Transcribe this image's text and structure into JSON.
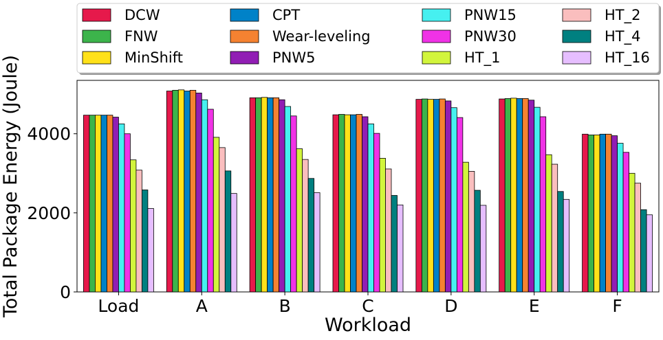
{
  "chart_data": {
    "type": "bar",
    "xlabel": "Workload",
    "ylabel": "Total Package Energy (Joule)",
    "ylim": [
      0,
      5350
    ],
    "yticks": [
      0,
      2000,
      4000
    ],
    "grid": false,
    "legend_position": "top",
    "legend_columns": 4,
    "categories": [
      "Load",
      "A",
      "B",
      "C",
      "D",
      "E",
      "F"
    ],
    "series": [
      {
        "name": "DCW",
        "color": "#e6194b",
        "values": [
          4470,
          5080,
          4910,
          4480,
          4870,
          4880,
          3990
        ]
      },
      {
        "name": "FNW",
        "color": "#3cb44b",
        "values": [
          4470,
          5100,
          4910,
          4490,
          4880,
          4890,
          3970
        ]
      },
      {
        "name": "MinShift",
        "color": "#ffe119",
        "values": [
          4470,
          5110,
          4920,
          4480,
          4870,
          4900,
          3970
        ]
      },
      {
        "name": "CPT",
        "color": "#0082c8",
        "values": [
          4470,
          5080,
          4910,
          4480,
          4870,
          4890,
          3990
        ]
      },
      {
        "name": "Wear-leveling",
        "color": "#f58231",
        "values": [
          4470,
          5100,
          4910,
          4490,
          4880,
          4890,
          3990
        ]
      },
      {
        "name": "PNW5",
        "color": "#911eb4",
        "values": [
          4420,
          5030,
          4860,
          4430,
          4830,
          4850,
          3950
        ]
      },
      {
        "name": "PNW15",
        "color": "#46f0f0",
        "values": [
          4250,
          4860,
          4690,
          4250,
          4660,
          4670,
          3760
        ]
      },
      {
        "name": "PNW30",
        "color": "#f032e6",
        "values": [
          4000,
          4620,
          4450,
          4010,
          4410,
          4430,
          3530
        ]
      },
      {
        "name": "HT_1",
        "color": "#d2f53c",
        "values": [
          3340,
          3910,
          3620,
          3380,
          3280,
          3470,
          3000
        ]
      },
      {
        "name": "HT_2",
        "color": "#fabebe",
        "values": [
          3080,
          3650,
          3350,
          3110,
          3050,
          3230,
          2750
        ]
      },
      {
        "name": "HT_4",
        "color": "#008080",
        "values": [
          2580,
          3060,
          2870,
          2440,
          2570,
          2540,
          2080
        ]
      },
      {
        "name": "HT_16",
        "color": "#e6beff",
        "values": [
          2110,
          2490,
          2510,
          2200,
          2190,
          2340,
          1950
        ]
      }
    ]
  }
}
